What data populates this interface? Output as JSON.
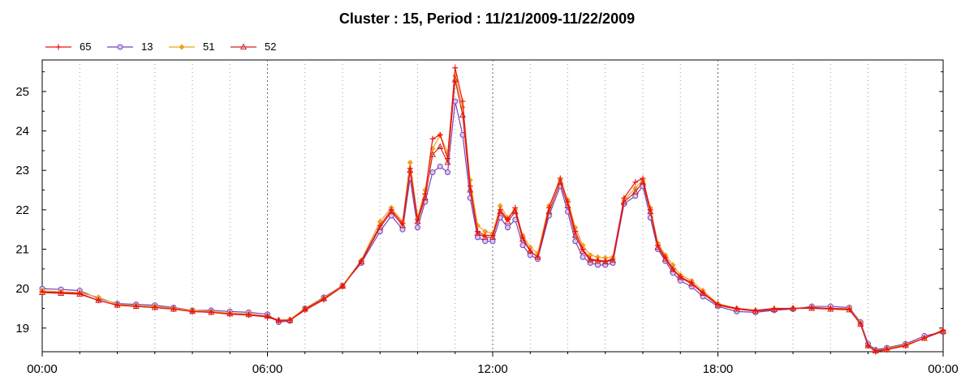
{
  "chart_data": {
    "type": "line",
    "title": "Cluster : 15, Period : 11/21/2009-11/22/2009",
    "xlabel": "",
    "ylabel": "",
    "x_ticks": [
      "00:00",
      "06:00",
      "12:00",
      "18:00",
      "00:00"
    ],
    "x_range_hours": [
      0,
      24
    ],
    "y_ticks": [
      19,
      20,
      21,
      22,
      23,
      24,
      25
    ],
    "ylim": [
      18.4,
      25.8
    ],
    "grid": true,
    "legend_position": "top-left",
    "x_hours": [
      0,
      0.5,
      1,
      1.5,
      2,
      2.5,
      3,
      3.5,
      4,
      4.5,
      5,
      5.5,
      6,
      6.3,
      6.6,
      7,
      7.5,
      8,
      8.5,
      9,
      9.3,
      9.6,
      9.8,
      10,
      10.2,
      10.4,
      10.6,
      10.8,
      11,
      11.2,
      11.4,
      11.6,
      11.8,
      12,
      12.2,
      12.4,
      12.6,
      12.8,
      13,
      13.2,
      13.5,
      13.8,
      14,
      14.2,
      14.4,
      14.6,
      14.8,
      15,
      15.2,
      15.5,
      15.8,
      16,
      16.2,
      16.4,
      16.6,
      16.8,
      17,
      17.3,
      17.6,
      18,
      18.5,
      19,
      19.5,
      20,
      20.5,
      21,
      21.5,
      21.8,
      22,
      22.2,
      22.5,
      23,
      23.5,
      24
    ],
    "series": [
      {
        "name": "65",
        "color": "#ee1111",
        "marker": "plus",
        "values": [
          19.92,
          19.9,
          19.88,
          19.7,
          19.58,
          19.55,
          19.52,
          19.48,
          19.42,
          19.4,
          19.35,
          19.33,
          19.28,
          19.18,
          19.2,
          19.45,
          19.72,
          20.05,
          20.7,
          21.6,
          22.0,
          21.65,
          23.05,
          21.75,
          22.4,
          23.8,
          23.9,
          23.3,
          25.6,
          24.75,
          22.6,
          21.45,
          21.35,
          21.35,
          22.0,
          21.75,
          22.05,
          21.3,
          20.95,
          20.8,
          22.05,
          22.8,
          22.2,
          21.45,
          21.0,
          20.75,
          20.72,
          20.7,
          20.75,
          22.3,
          22.7,
          22.8,
          22.0,
          21.1,
          20.8,
          20.5,
          20.3,
          20.15,
          19.9,
          19.6,
          19.5,
          19.45,
          19.5,
          19.5,
          19.52,
          19.5,
          19.48,
          19.1,
          18.55,
          18.4,
          18.45,
          18.55,
          18.75,
          18.95
        ]
      },
      {
        "name": "13",
        "color": "#7744bb",
        "marker": "circle",
        "values": [
          20.0,
          19.98,
          19.95,
          19.75,
          19.62,
          19.6,
          19.58,
          19.52,
          19.45,
          19.45,
          19.42,
          19.4,
          19.35,
          19.15,
          19.18,
          19.5,
          19.78,
          20.08,
          20.65,
          21.45,
          21.85,
          21.5,
          22.8,
          21.55,
          22.2,
          22.95,
          23.1,
          22.95,
          24.75,
          23.9,
          22.3,
          21.3,
          21.2,
          21.2,
          21.8,
          21.55,
          21.75,
          21.1,
          20.85,
          20.75,
          21.85,
          22.6,
          21.95,
          21.2,
          20.8,
          20.65,
          20.6,
          20.6,
          20.65,
          22.15,
          22.35,
          22.6,
          21.8,
          21.0,
          20.7,
          20.4,
          20.2,
          20.05,
          19.8,
          19.55,
          19.42,
          19.4,
          19.45,
          19.48,
          19.55,
          19.55,
          19.52,
          19.15,
          18.6,
          18.45,
          18.5,
          18.6,
          18.8,
          18.9
        ]
      },
      {
        "name": "51",
        "color": "#f0a020",
        "marker": "diamond",
        "values": [
          19.95,
          19.92,
          19.9,
          19.78,
          19.6,
          19.57,
          19.55,
          19.5,
          19.45,
          19.42,
          19.38,
          19.36,
          19.3,
          19.2,
          19.22,
          19.5,
          19.76,
          20.08,
          20.72,
          21.7,
          22.05,
          21.7,
          23.2,
          21.8,
          22.5,
          23.55,
          23.9,
          23.45,
          25.4,
          24.6,
          22.75,
          21.6,
          21.45,
          21.4,
          22.1,
          21.8,
          22.0,
          21.35,
          21.05,
          20.9,
          22.1,
          22.75,
          22.25,
          21.55,
          21.1,
          20.85,
          20.8,
          20.78,
          20.8,
          22.25,
          22.55,
          22.75,
          22.05,
          21.15,
          20.85,
          20.6,
          20.35,
          20.2,
          19.95,
          19.62,
          19.5,
          19.45,
          19.48,
          19.5,
          19.52,
          19.5,
          19.5,
          19.12,
          18.55,
          18.42,
          18.48,
          18.58,
          18.75,
          18.92
        ]
      },
      {
        "name": "52",
        "color": "#cc2222",
        "marker": "triangle",
        "values": [
          19.9,
          19.88,
          19.86,
          19.7,
          19.58,
          19.55,
          19.52,
          19.48,
          19.42,
          19.4,
          19.36,
          19.34,
          19.3,
          19.2,
          19.2,
          19.48,
          19.74,
          20.06,
          20.68,
          21.55,
          21.95,
          21.6,
          23.0,
          21.7,
          22.3,
          23.4,
          23.6,
          23.2,
          25.3,
          24.4,
          22.5,
          21.4,
          21.3,
          21.3,
          21.95,
          21.7,
          21.95,
          21.25,
          20.95,
          20.8,
          21.95,
          22.7,
          22.1,
          21.35,
          20.95,
          20.72,
          20.7,
          20.68,
          20.72,
          22.2,
          22.45,
          22.7,
          21.95,
          21.05,
          20.75,
          20.48,
          20.28,
          20.12,
          19.88,
          19.58,
          19.48,
          19.43,
          19.47,
          19.5,
          19.5,
          19.48,
          19.46,
          19.1,
          18.55,
          18.42,
          18.46,
          18.56,
          18.74,
          18.92
        ]
      }
    ]
  }
}
